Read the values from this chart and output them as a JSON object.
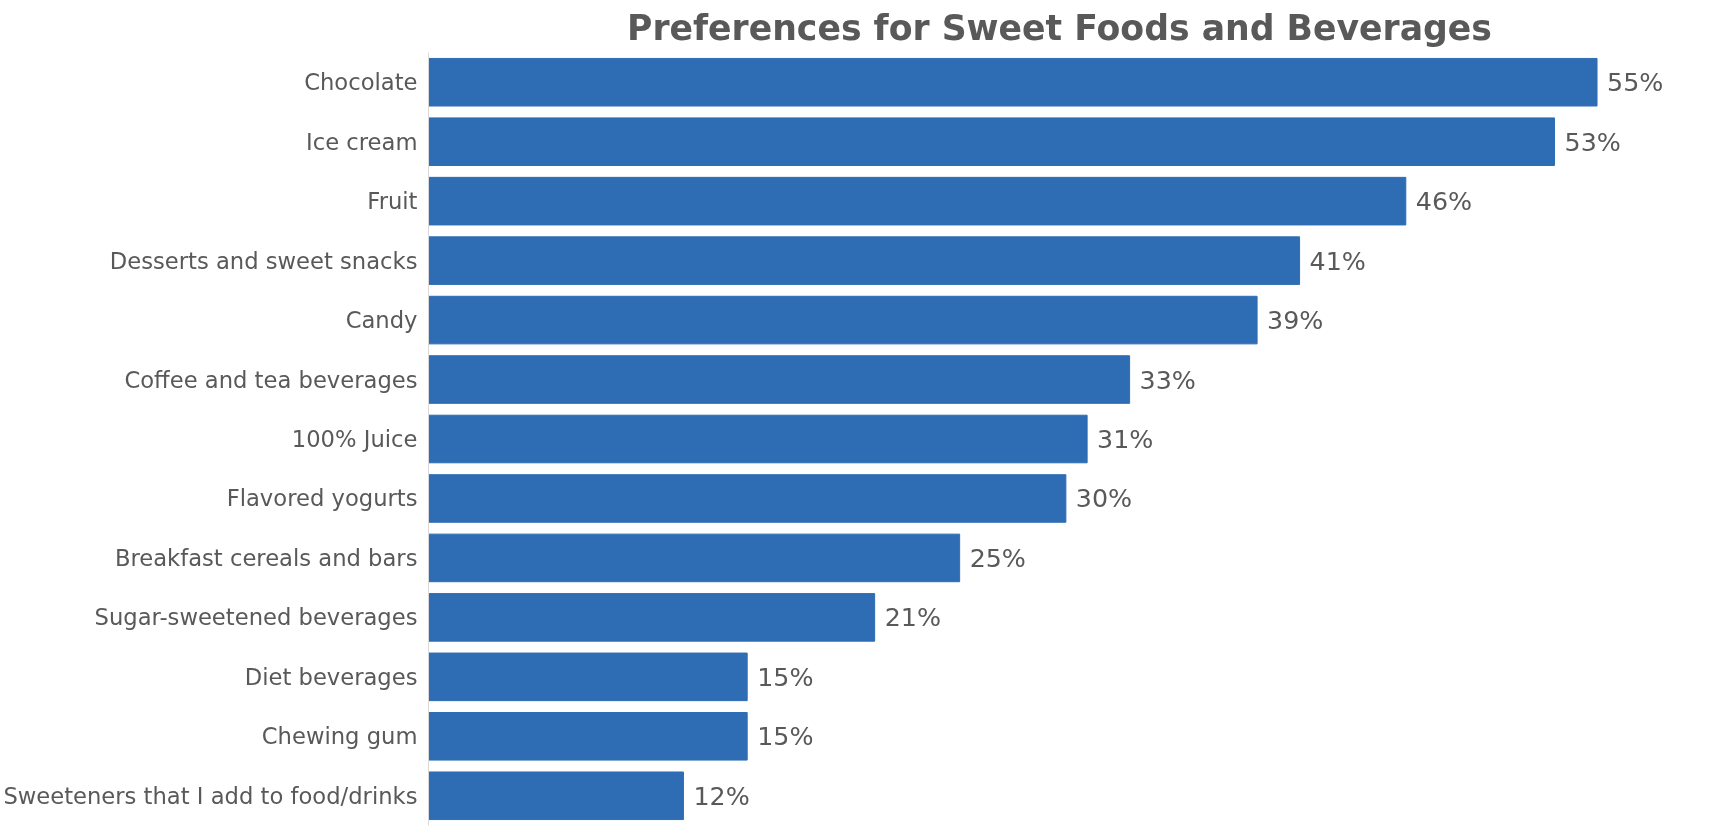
{
  "chart_data": {
    "type": "bar",
    "orientation": "horizontal",
    "title": "Preferences for Sweet Foods and Beverages",
    "categories": [
      "Chocolate",
      "Ice cream",
      "Fruit",
      "Desserts and sweet snacks",
      "Candy",
      "Coffee and tea beverages",
      "100% Juice",
      "Flavored yogurts",
      "Breakfast cereals and bars",
      "Sugar-sweetened beverages",
      "Diet beverages",
      "Chewing gum",
      "Sweeteners that I add to food/drinks"
    ],
    "values": [
      55,
      53,
      46,
      41,
      39,
      33,
      31,
      30,
      25,
      21,
      15,
      15,
      12
    ],
    "value_labels": [
      "55%",
      "53%",
      "46%",
      "41%",
      "39%",
      "33%",
      "31%",
      "30%",
      "25%",
      "21%",
      "15%",
      "15%",
      "12%"
    ],
    "color": "#2e6db4",
    "grid": false
  }
}
